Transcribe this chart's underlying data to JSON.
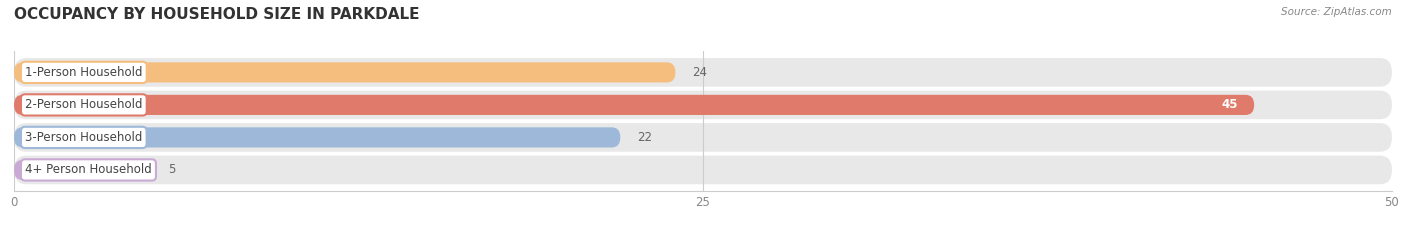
{
  "title": "OCCUPANCY BY HOUSEHOLD SIZE IN PARKDALE",
  "source_text": "Source: ZipAtlas.com",
  "categories": [
    "1-Person Household",
    "2-Person Household",
    "3-Person Household",
    "4+ Person Household"
  ],
  "values": [
    24,
    45,
    22,
    5
  ],
  "bar_colors": [
    "#f5be7e",
    "#e07b6b",
    "#9db8d9",
    "#c9aad5"
  ],
  "background_color": "#ffffff",
  "row_bg_color": "#e8e8e8",
  "xlim": [
    0,
    50
  ],
  "xticks": [
    0,
    25,
    50
  ],
  "label_fontsize": 8.5,
  "value_fontsize": 8.5,
  "title_fontsize": 11,
  "bar_height": 0.62,
  "figsize": [
    14.06,
    2.33
  ],
  "dpi": 100
}
